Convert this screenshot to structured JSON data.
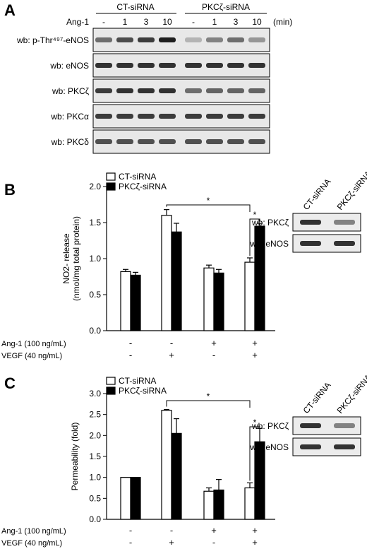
{
  "panel_a": {
    "letter": "A",
    "treatment_label": "Ang-1",
    "groups": [
      "CT-siRNA",
      "PKCζ-siRNA"
    ],
    "times": [
      "-",
      "1",
      "3",
      "10",
      "-",
      "1",
      "3",
      "10"
    ],
    "time_unit": "(min)",
    "blots": [
      {
        "label": "wb: p-Thr⁴⁹⁷-eNOS",
        "intensity": [
          0.55,
          0.72,
          0.8,
          0.95,
          0.2,
          0.45,
          0.55,
          0.35
        ]
      },
      {
        "label": "wb: eNOS",
        "intensity": [
          0.85,
          0.85,
          0.85,
          0.85,
          0.85,
          0.85,
          0.85,
          0.85
        ]
      },
      {
        "label": "wb: PKCζ",
        "intensity": [
          0.8,
          0.85,
          0.85,
          0.85,
          0.55,
          0.6,
          0.6,
          0.6
        ]
      },
      {
        "label": "wb: PKCα",
        "intensity": [
          0.8,
          0.8,
          0.8,
          0.8,
          0.8,
          0.8,
          0.8,
          0.8
        ]
      },
      {
        "label": "wb: PKCδ",
        "intensity": [
          0.7,
          0.7,
          0.7,
          0.7,
          0.7,
          0.7,
          0.7,
          0.7
        ]
      }
    ]
  },
  "chart_data": [
    {
      "panel": "B",
      "type": "bar",
      "ylabel": "NO2- release",
      "ylabel_line2": "(nmol/mg total protein)",
      "ylim": [
        0,
        2.0
      ],
      "yticks": [
        "0.0",
        "0.5",
        "1.0",
        "1.5",
        "2.0"
      ],
      "categories": [
        "1",
        "2",
        "3",
        "4"
      ],
      "series": [
        {
          "name": "CT-siRNA",
          "color": "#ffffff",
          "values": [
            0.82,
            1.6,
            0.87,
            0.95
          ],
          "errors": [
            0.03,
            0.08,
            0.04,
            0.06
          ]
        },
        {
          "name": "PKCζ-siRNA",
          "color": "#000000",
          "values": [
            0.77,
            1.37,
            0.8,
            1.45
          ],
          "errors": [
            0.04,
            0.12,
            0.05,
            0.04
          ]
        }
      ],
      "treatments": [
        {
          "label": "Ang-1 (100 ng/mL)",
          "signs": [
            "-",
            "-",
            "+",
            "+"
          ]
        },
        {
          "label": "VEGF (40 ng/mL)",
          "signs": [
            "-",
            "+",
            "-",
            "+"
          ]
        }
      ],
      "significance": "*",
      "inset": {
        "columns": [
          "CT-siRNA",
          "PKCζ-siRNA"
        ],
        "rows": [
          "wb: PKCζ",
          "wb: eNOS"
        ]
      }
    },
    {
      "panel": "C",
      "type": "bar",
      "ylabel": "Permeability (fold)",
      "ylim": [
        0,
        3.0
      ],
      "yticks": [
        "0.0",
        "0.5",
        "1.0",
        "1.5",
        "2.0",
        "2.5",
        "3.0"
      ],
      "categories": [
        "1",
        "2",
        "3",
        "4"
      ],
      "series": [
        {
          "name": "CT-siRNA",
          "color": "#ffffff",
          "values": [
            1.0,
            2.6,
            0.67,
            0.75
          ],
          "errors": [
            0.0,
            0.02,
            0.08,
            0.12
          ]
        },
        {
          "name": "PKCζ-siRNA",
          "color": "#000000",
          "values": [
            1.0,
            2.05,
            0.7,
            1.85
          ],
          "errors": [
            0.0,
            0.35,
            0.25,
            0.32
          ]
        }
      ],
      "treatments": [
        {
          "label": "Ang-1 (100 ng/mL)",
          "signs": [
            "-",
            "-",
            "+",
            "+"
          ]
        },
        {
          "label": "VEGF (40 ng/mL)",
          "signs": [
            "-",
            "+",
            "-",
            "+"
          ]
        }
      ],
      "significance": "*",
      "inset": {
        "columns": [
          "CT-siRNA",
          "PKCζ-siRNA"
        ],
        "rows": [
          "wb: PKCζ",
          "wb: eNOS"
        ]
      }
    }
  ]
}
